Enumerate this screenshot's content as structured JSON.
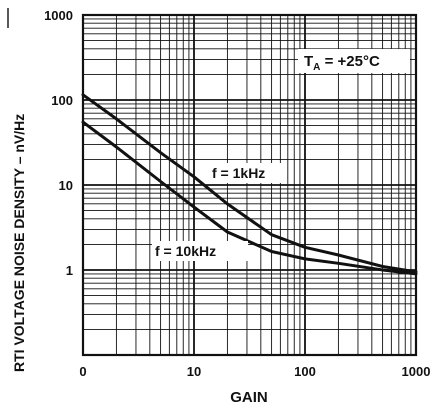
{
  "chart_data": {
    "type": "line",
    "xlabel": "GAIN",
    "ylabel_main": "RTI  VOLTAGE NOISE DENSITY – nV/",
    "ylabel_unit": "Hz",
    "x_scale": "log",
    "y_scale": "log",
    "xlim": [
      1,
      1000
    ],
    "ylim": [
      0.1,
      1000
    ],
    "x_ticks": [
      {
        "value": 1,
        "label": "0"
      },
      {
        "value": 10,
        "label": "10"
      },
      {
        "value": 100,
        "label": "100"
      },
      {
        "value": 1000,
        "label": "1000"
      }
    ],
    "y_ticks": [
      {
        "value": 1,
        "label": "1"
      },
      {
        "value": 10,
        "label": "10"
      },
      {
        "value": 100,
        "label": "100"
      },
      {
        "value": 1000,
        "label": "1000"
      }
    ],
    "grid": true,
    "annotations": {
      "temperature_main": "T",
      "temperature_sub": "A",
      "temperature_rest": " = +25°C"
    },
    "series": [
      {
        "name": "f = 1kHz",
        "x": [
          1,
          2,
          5,
          10,
          20,
          50,
          100,
          200,
          500,
          1000
        ],
        "y": [
          115,
          60,
          24,
          12.5,
          6,
          2.6,
          1.85,
          1.5,
          1.1,
          0.95
        ]
      },
      {
        "name": "f = 10kHz",
        "x": [
          1,
          2,
          5,
          10,
          20,
          50,
          100,
          200,
          500,
          1000
        ],
        "y": [
          55,
          28,
          11,
          5.5,
          2.8,
          1.65,
          1.35,
          1.2,
          1.0,
          0.9
        ]
      }
    ],
    "colors": {
      "line": "#111111",
      "grid": "#111111",
      "background": "#ffffff"
    }
  }
}
